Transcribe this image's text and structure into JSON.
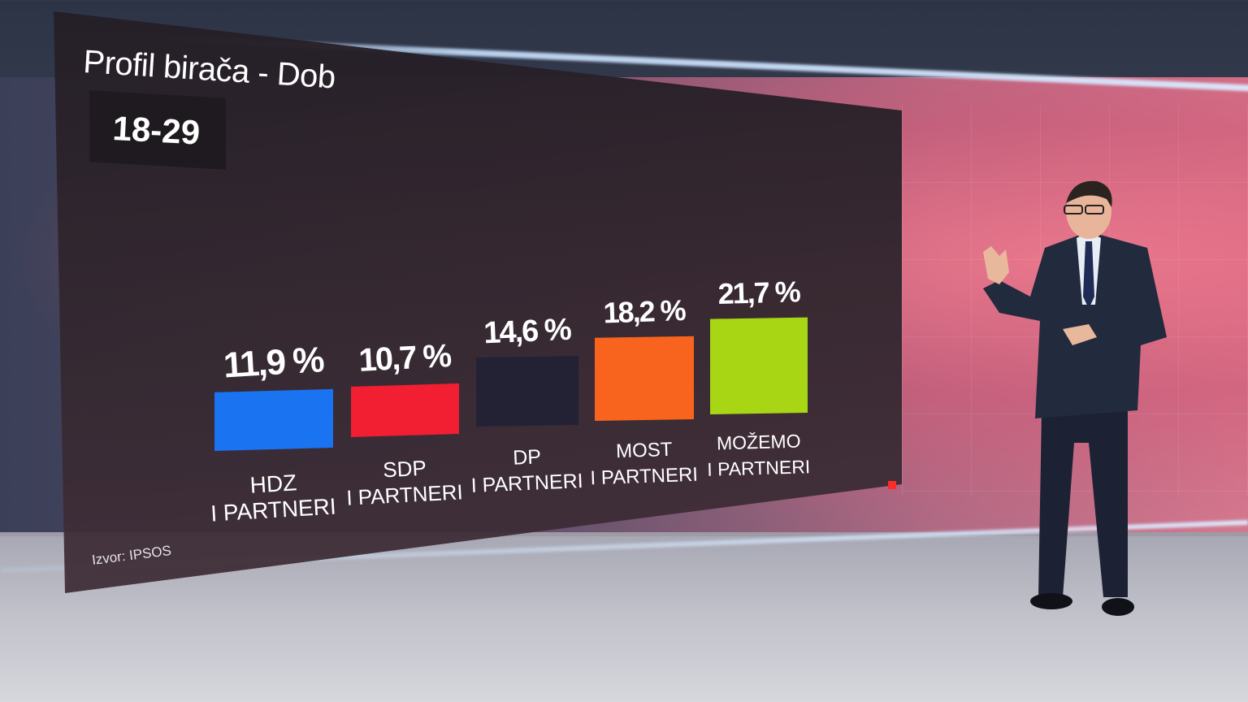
{
  "chart_data": {
    "type": "bar",
    "title": "Profil birača - Dob",
    "subtitle": "18-29",
    "source": "Izvor: IPSOS",
    "categories": [
      [
        "HDZ",
        "I PARTNERI"
      ],
      [
        "SDP",
        "I PARTNERI"
      ],
      [
        "DP",
        "I PARTNERI"
      ],
      [
        "MOST",
        "I PARTNERI"
      ],
      [
        "MOŽEMO",
        "I PARTNERI"
      ]
    ],
    "values": [
      11.9,
      10.7,
      14.6,
      18.2,
      21.7
    ],
    "value_labels": [
      "11,9 %",
      "10,7 %",
      "14,6 %",
      "18,2 %",
      "21,7 %"
    ],
    "colors": [
      "#1a73f0",
      "#f21e32",
      "#232235",
      "#f8641e",
      "#a8d614"
    ],
    "unit": "%"
  }
}
